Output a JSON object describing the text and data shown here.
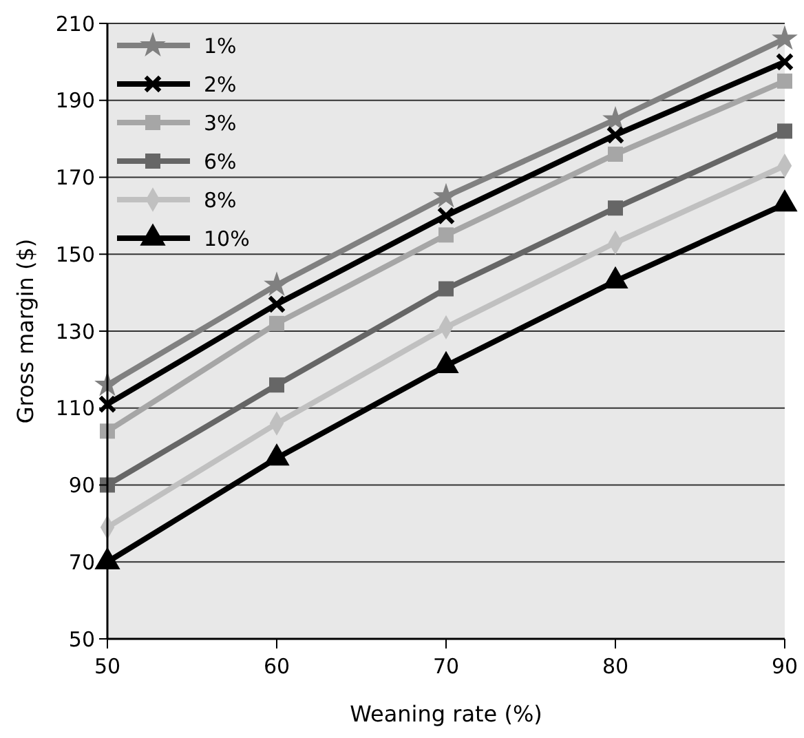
{
  "chart_data": {
    "type": "line",
    "xlabel": "Weaning rate (%)",
    "ylabel": "Gross margin ($)",
    "x": [
      50,
      60,
      70,
      80,
      90
    ],
    "xlim": [
      50,
      90
    ],
    "xticks": [
      50,
      60,
      70,
      80,
      90
    ],
    "ylim": [
      50,
      210
    ],
    "yticks": [
      50,
      70,
      90,
      110,
      130,
      150,
      170,
      190,
      210
    ],
    "grid": "y",
    "legend": "top left",
    "line_style": "solid",
    "series": [
      {
        "name": "1%",
        "color": "#808080",
        "marker": "star",
        "values": [
          116,
          142,
          165,
          185,
          206
        ]
      },
      {
        "name": "2%",
        "color": "#000000",
        "marker": "cross",
        "values": [
          111,
          137,
          160,
          181,
          200
        ]
      },
      {
        "name": "3%",
        "color": "#a6a6a6",
        "marker": "square",
        "values": [
          104,
          132,
          155,
          176,
          195
        ]
      },
      {
        "name": "6%",
        "color": "#666666",
        "marker": "square",
        "values": [
          90,
          116,
          141,
          162,
          182
        ]
      },
      {
        "name": "8%",
        "color": "#c0c0c0",
        "marker": "diamond",
        "values": [
          79,
          106,
          131,
          153,
          173
        ]
      },
      {
        "name": "10%",
        "color": "#000000",
        "marker": "triangle",
        "values": [
          70,
          97,
          121,
          143,
          163
        ]
      }
    ]
  }
}
